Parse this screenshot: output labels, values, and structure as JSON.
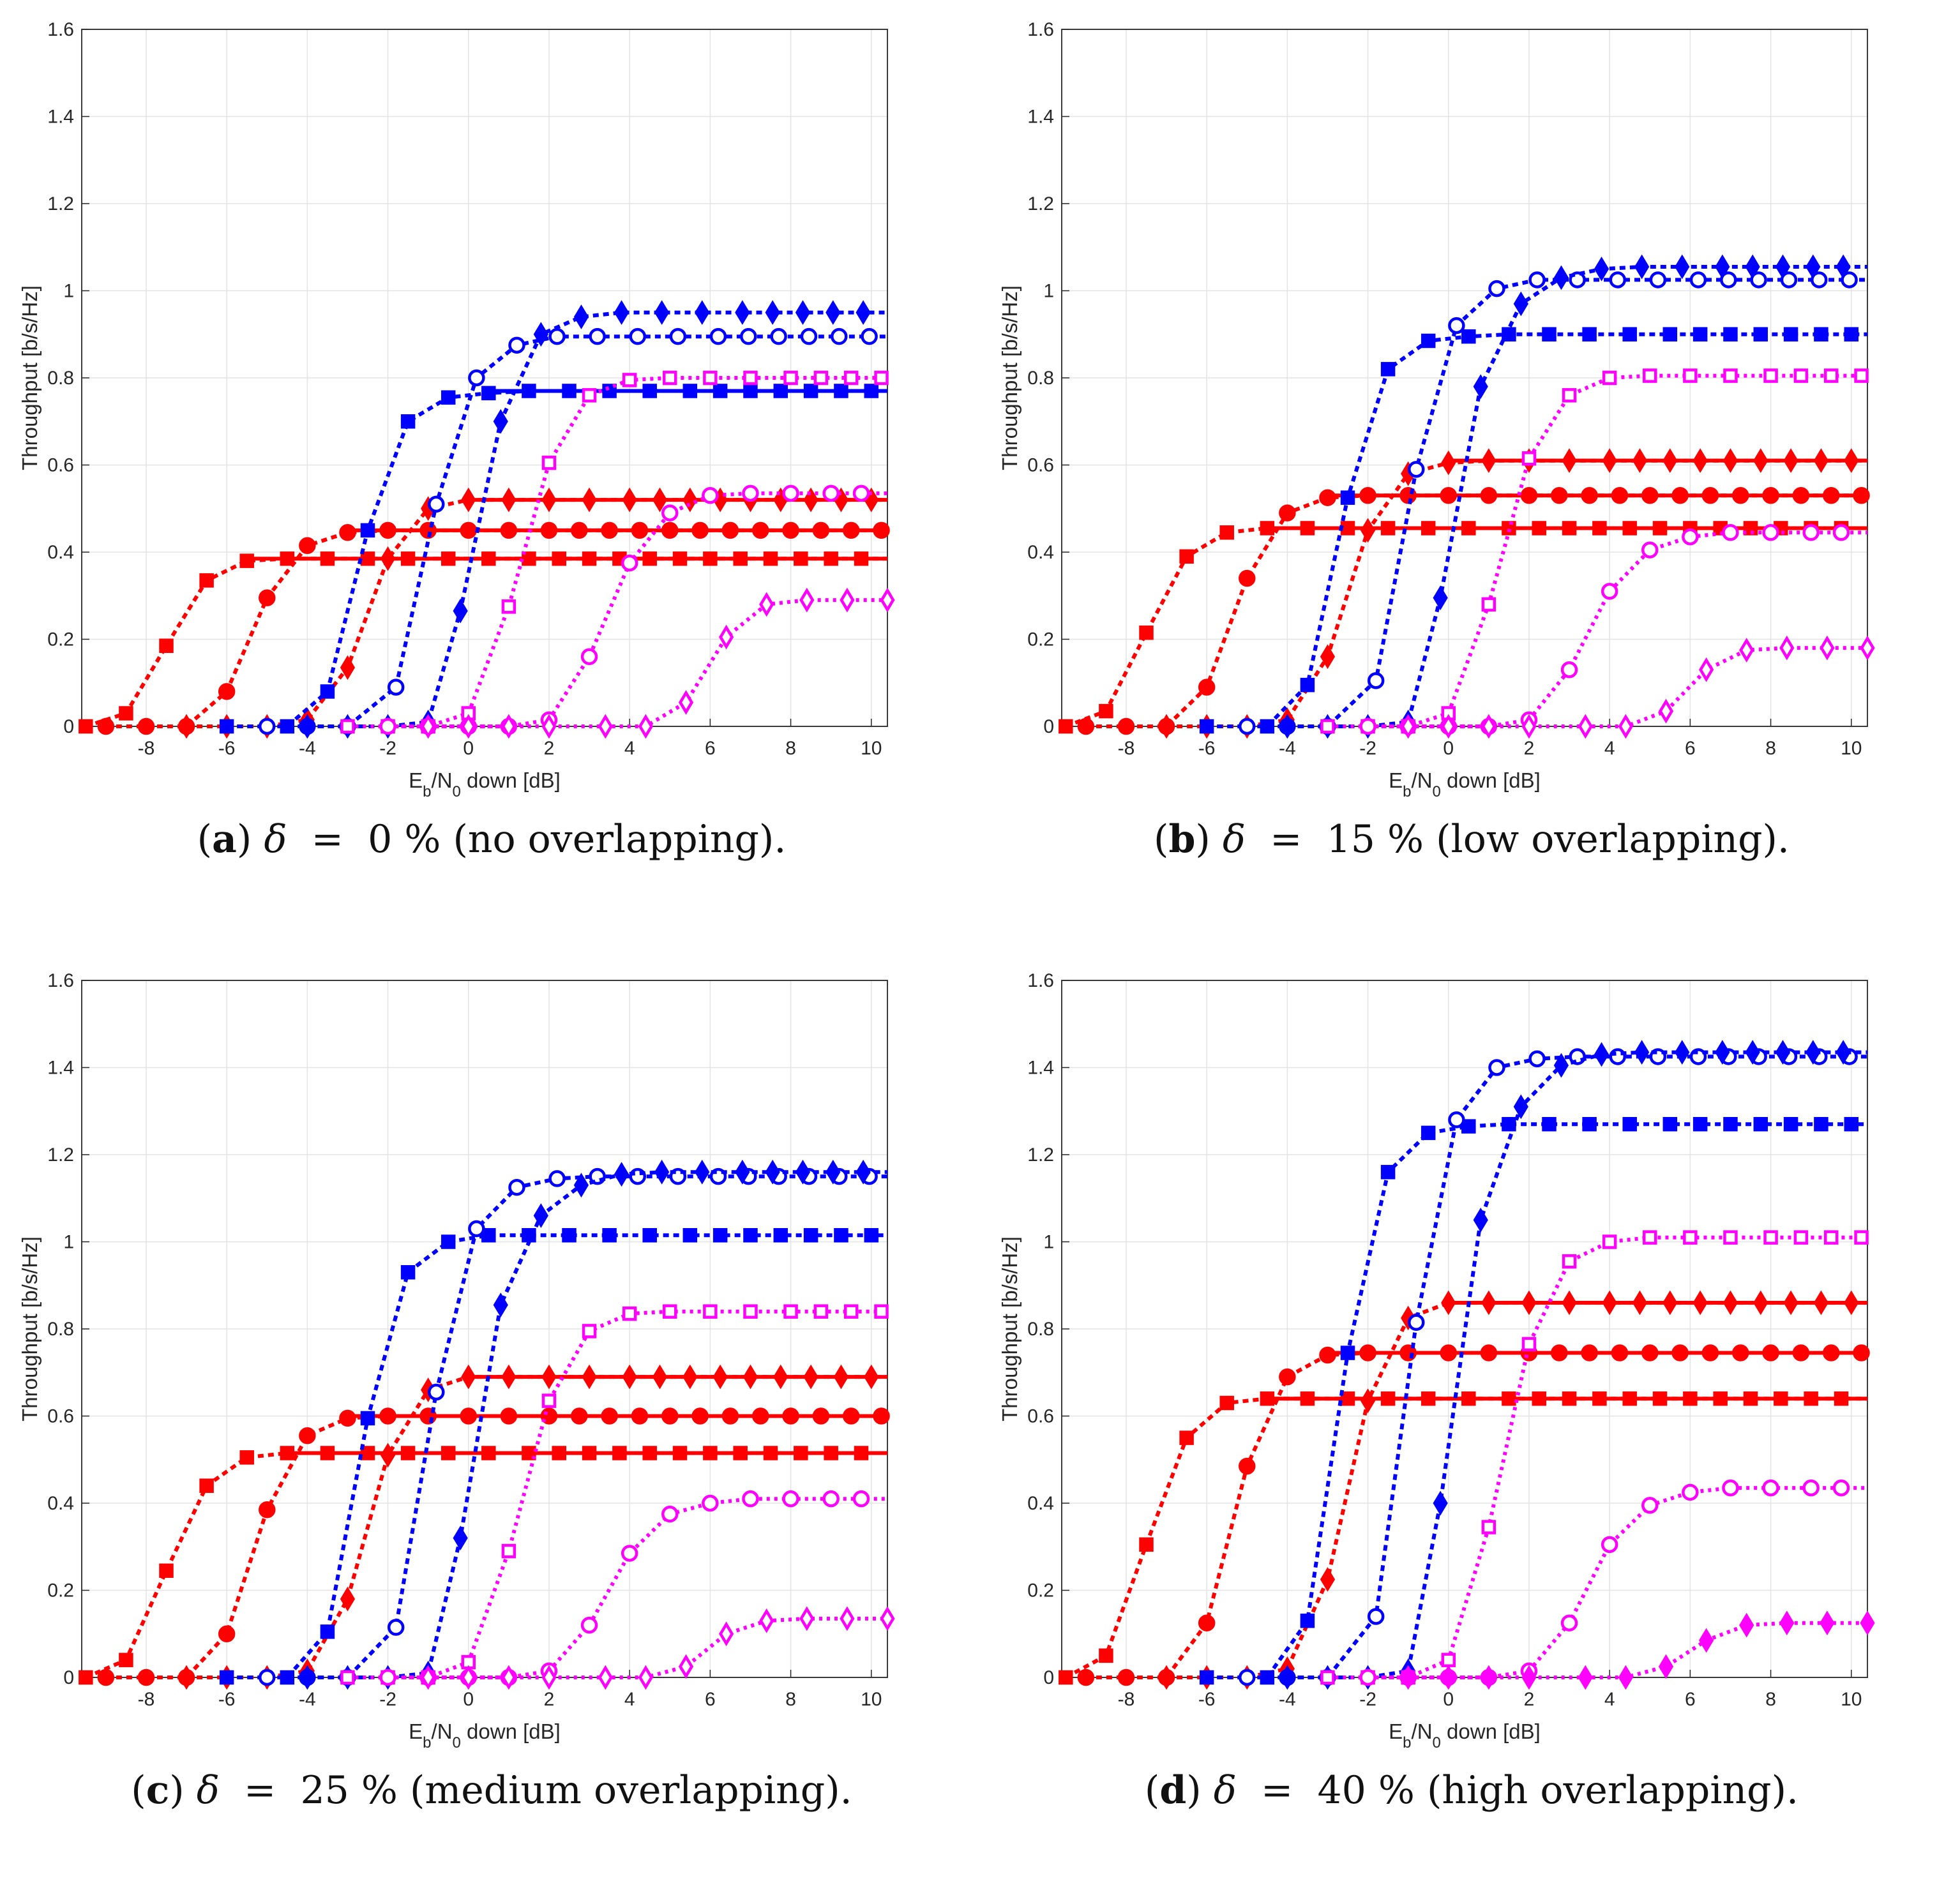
{
  "chart_data": [
    {
      "id": "a",
      "type": "line",
      "caption": {
        "letter": "a",
        "symbol": "δ",
        "value": "0",
        "text": "(no overlapping)."
      },
      "xlabel": "E_b/N_0 down [dB]",
      "ylabel": "Throughput [b/s/Hz]",
      "xlim": [
        -9.6,
        10.4
      ],
      "ylim": [
        0,
        1.6
      ],
      "xticks": [
        -8,
        -6,
        -4,
        -2,
        0,
        2,
        4,
        6,
        8,
        10
      ],
      "yticks": [
        0,
        0.2,
        0.4,
        0.6,
        0.8,
        1,
        1.2,
        1.4,
        1.6
      ],
      "grid": true,
      "series": [
        {
          "color": "#ff0000",
          "marker": "square",
          "filled": true,
          "values": [
            0,
            0.03,
            0.185,
            0.335,
            0.38,
            0.385,
            0.385,
            0.385,
            0.385,
            0.385,
            0.385,
            0.385
          ]
        },
        {
          "color": "#ff0000",
          "marker": "circle",
          "filled": true,
          "values": [
            0,
            0,
            0,
            0.08,
            0.295,
            0.415,
            0.445,
            0.45,
            0.45,
            0.45,
            0.45,
            0.45
          ]
        },
        {
          "color": "#ff0000",
          "marker": "diamond",
          "filled": true,
          "values": [
            0,
            0,
            0,
            0.015,
            0.135,
            0.385,
            0.5,
            0.52,
            0.52,
            0.52,
            0.52,
            0.52
          ]
        },
        {
          "color": "#0000ff",
          "marker": "square",
          "filled": true,
          "values": [
            0,
            0,
            0.08,
            0.45,
            0.7,
            0.755,
            0.765,
            0.77,
            0.77,
            0.77,
            0.77,
            0.77
          ]
        },
        {
          "color": "#0000ff",
          "marker": "circle",
          "filled": false,
          "values": [
            0,
            0,
            0,
            0.09,
            0.51,
            0.8,
            0.875,
            0.895,
            0.895,
            0.895,
            0.895,
            0.895
          ]
        },
        {
          "color": "#0000ff",
          "marker": "diamond",
          "filled": true,
          "values": [
            0,
            0,
            0,
            0.01,
            0.265,
            0.7,
            0.9,
            0.94,
            0.95,
            0.95,
            0.95,
            0.95
          ]
        },
        {
          "color": "#ff00ff",
          "marker": "square",
          "filled": false,
          "values": [
            0,
            0,
            0,
            0.03,
            0.275,
            0.605,
            0.76,
            0.795,
            0.8,
            0.8,
            0.8,
            0.8
          ]
        },
        {
          "color": "#ff00ff",
          "marker": "circle",
          "filled": false,
          "values": [
            0,
            0,
            0,
            0,
            0.015,
            0.16,
            0.375,
            0.49,
            0.53,
            0.535,
            0.535,
            0.535
          ]
        },
        {
          "color": "#ff00ff",
          "marker": "diamond",
          "filled": false,
          "values": [
            0,
            0,
            0,
            0,
            0,
            0,
            0.055,
            0.205,
            0.28,
            0.29,
            0.29,
            0.29
          ]
        }
      ]
    },
    {
      "id": "b",
      "type": "line",
      "caption": {
        "letter": "b",
        "symbol": "δ",
        "value": "15",
        "text": "(low overlapping)."
      },
      "xlabel": "E_b/N_0 down [dB]",
      "ylabel": "Throughput [b/s/Hz]",
      "xlim": [
        -9.6,
        10.4
      ],
      "ylim": [
        0,
        1.6
      ],
      "xticks": [
        -8,
        -6,
        -4,
        -2,
        0,
        2,
        4,
        6,
        8,
        10
      ],
      "yticks": [
        0,
        0.2,
        0.4,
        0.6,
        0.8,
        1,
        1.2,
        1.4,
        1.6
      ],
      "grid": true,
      "series": [
        {
          "color": "#ff0000",
          "marker": "square",
          "filled": true,
          "values": [
            0,
            0.035,
            0.215,
            0.39,
            0.445,
            0.455,
            0.455,
            0.455,
            0.455,
            0.455,
            0.455,
            0.455
          ]
        },
        {
          "color": "#ff0000",
          "marker": "circle",
          "filled": true,
          "values": [
            0,
            0,
            0,
            0.09,
            0.34,
            0.49,
            0.525,
            0.53,
            0.53,
            0.53,
            0.53,
            0.53
          ]
        },
        {
          "color": "#ff0000",
          "marker": "diamond",
          "filled": true,
          "values": [
            0,
            0,
            0,
            0.015,
            0.16,
            0.45,
            0.58,
            0.605,
            0.61,
            0.61,
            0.61,
            0.61
          ]
        },
        {
          "color": "#0000ff",
          "marker": "square",
          "filled": true,
          "values": [
            0,
            0,
            0.095,
            0.525,
            0.82,
            0.885,
            0.895,
            0.9,
            0.9,
            0.9,
            0.9,
            0.9
          ]
        },
        {
          "color": "#0000ff",
          "marker": "circle",
          "filled": false,
          "values": [
            0,
            0,
            0,
            0.105,
            0.59,
            0.92,
            1.005,
            1.025,
            1.025,
            1.025,
            1.025,
            1.025
          ]
        },
        {
          "color": "#0000ff",
          "marker": "diamond",
          "filled": true,
          "values": [
            0,
            0,
            0,
            0.01,
            0.295,
            0.78,
            0.97,
            1.03,
            1.05,
            1.055,
            1.055,
            1.055
          ]
        },
        {
          "color": "#ff00ff",
          "marker": "square",
          "filled": false,
          "values": [
            0,
            0,
            0,
            0.03,
            0.28,
            0.615,
            0.76,
            0.8,
            0.805,
            0.805,
            0.805,
            0.805
          ]
        },
        {
          "color": "#ff00ff",
          "marker": "circle",
          "filled": false,
          "values": [
            0,
            0,
            0,
            0,
            0.015,
            0.13,
            0.31,
            0.405,
            0.435,
            0.445,
            0.445,
            0.445
          ]
        },
        {
          "color": "#ff00ff",
          "marker": "diamond",
          "filled": false,
          "values": [
            0,
            0,
            0,
            0,
            0,
            0,
            0.035,
            0.13,
            0.175,
            0.18,
            0.18,
            0.18
          ]
        }
      ]
    },
    {
      "id": "c",
      "type": "line",
      "caption": {
        "letter": "c",
        "symbol": "δ",
        "value": "25",
        "text": "(medium overlapping)."
      },
      "xlabel": "E_b/N_0 down [dB]",
      "ylabel": "Throughput [b/s/Hz]",
      "xlim": [
        -9.6,
        10.4
      ],
      "ylim": [
        0,
        1.6
      ],
      "xticks": [
        -8,
        -6,
        -4,
        -2,
        0,
        2,
        4,
        6,
        8,
        10
      ],
      "yticks": [
        0,
        0.2,
        0.4,
        0.6,
        0.8,
        1,
        1.2,
        1.4,
        1.6
      ],
      "grid": true,
      "series": [
        {
          "color": "#ff0000",
          "marker": "square",
          "filled": true,
          "values": [
            0,
            0.04,
            0.245,
            0.44,
            0.505,
            0.515,
            0.515,
            0.515,
            0.515,
            0.515,
            0.515,
            0.515
          ]
        },
        {
          "color": "#ff0000",
          "marker": "circle",
          "filled": true,
          "values": [
            0,
            0,
            0,
            0.1,
            0.385,
            0.555,
            0.595,
            0.6,
            0.6,
            0.6,
            0.6,
            0.6
          ]
        },
        {
          "color": "#ff0000",
          "marker": "diamond",
          "filled": true,
          "values": [
            0,
            0,
            0,
            0.015,
            0.18,
            0.51,
            0.66,
            0.69,
            0.69,
            0.69,
            0.69,
            0.69
          ]
        },
        {
          "color": "#0000ff",
          "marker": "square",
          "filled": true,
          "values": [
            0,
            0,
            0.105,
            0.595,
            0.93,
            1.0,
            1.015,
            1.015,
            1.015,
            1.015,
            1.015,
            1.015
          ]
        },
        {
          "color": "#0000ff",
          "marker": "circle",
          "filled": false,
          "values": [
            0,
            0,
            0,
            0.115,
            0.655,
            1.03,
            1.125,
            1.145,
            1.15,
            1.15,
            1.15,
            1.15
          ]
        },
        {
          "color": "#0000ff",
          "marker": "diamond",
          "filled": true,
          "values": [
            0,
            0,
            0,
            0.01,
            0.32,
            0.855,
            1.06,
            1.13,
            1.155,
            1.16,
            1.16,
            1.16
          ]
        },
        {
          "color": "#ff00ff",
          "marker": "square",
          "filled": false,
          "values": [
            0,
            0,
            0,
            0.035,
            0.29,
            0.635,
            0.795,
            0.835,
            0.84,
            0.84,
            0.84,
            0.84
          ]
        },
        {
          "color": "#ff00ff",
          "marker": "circle",
          "filled": false,
          "values": [
            0,
            0,
            0,
            0,
            0.015,
            0.12,
            0.285,
            0.375,
            0.4,
            0.41,
            0.41,
            0.41
          ]
        },
        {
          "color": "#ff00ff",
          "marker": "diamond",
          "filled": false,
          "values": [
            0,
            0,
            0,
            0,
            0,
            0,
            0.025,
            0.1,
            0.13,
            0.135,
            0.135,
            0.135
          ]
        }
      ]
    },
    {
      "id": "d",
      "type": "line",
      "caption": {
        "letter": "d",
        "symbol": "δ",
        "value": "40",
        "text": "(high overlapping)."
      },
      "xlabel": "E_b/N_0 down [dB]",
      "ylabel": "Throughput [b/s/Hz]",
      "xlim": [
        -9.6,
        10.4
      ],
      "ylim": [
        0,
        1.6
      ],
      "xticks": [
        -8,
        -6,
        -4,
        -2,
        0,
        2,
        4,
        6,
        8,
        10
      ],
      "yticks": [
        0,
        0.2,
        0.4,
        0.6,
        0.8,
        1,
        1.2,
        1.4,
        1.6
      ],
      "grid": true,
      "series": [
        {
          "color": "#ff0000",
          "marker": "square",
          "filled": true,
          "values": [
            0,
            0.05,
            0.305,
            0.55,
            0.63,
            0.64,
            0.64,
            0.64,
            0.64,
            0.64,
            0.64,
            0.64
          ]
        },
        {
          "color": "#ff0000",
          "marker": "circle",
          "filled": true,
          "values": [
            0,
            0,
            0,
            0.125,
            0.485,
            0.69,
            0.74,
            0.745,
            0.745,
            0.745,
            0.745,
            0.745
          ]
        },
        {
          "color": "#ff0000",
          "marker": "diamond",
          "filled": true,
          "values": [
            0,
            0,
            0,
            0.02,
            0.225,
            0.635,
            0.825,
            0.86,
            0.86,
            0.86,
            0.86,
            0.86
          ]
        },
        {
          "color": "#0000ff",
          "marker": "square",
          "filled": true,
          "values": [
            0,
            0,
            0.13,
            0.745,
            1.16,
            1.25,
            1.265,
            1.27,
            1.27,
            1.27,
            1.27,
            1.27
          ]
        },
        {
          "color": "#0000ff",
          "marker": "circle",
          "filled": false,
          "values": [
            0,
            0,
            0,
            0.14,
            0.815,
            1.28,
            1.4,
            1.42,
            1.425,
            1.425,
            1.425,
            1.425
          ]
        },
        {
          "color": "#0000ff",
          "marker": "diamond",
          "filled": true,
          "values": [
            0,
            0,
            0,
            0.015,
            0.4,
            1.05,
            1.31,
            1.405,
            1.43,
            1.435,
            1.435,
            1.435
          ]
        },
        {
          "color": "#ff00ff",
          "marker": "square",
          "filled": false,
          "values": [
            0,
            0,
            0,
            0.04,
            0.345,
            0.765,
            0.955,
            1.0,
            1.01,
            1.01,
            1.01,
            1.01
          ]
        },
        {
          "color": "#ff00ff",
          "marker": "circle",
          "filled": false,
          "values": [
            0,
            0,
            0,
            0,
            0.015,
            0.125,
            0.305,
            0.395,
            0.425,
            0.435,
            0.435,
            0.435
          ]
        },
        {
          "color": "#ff00ff",
          "marker": "diamond",
          "filled": true,
          "values": [
            0,
            0,
            0,
            0,
            0,
            0,
            0.025,
            0.085,
            0.12,
            0.125,
            0.125,
            0.125
          ]
        }
      ]
    }
  ],
  "series_x_grid": [
    [
      -9.5,
      -8.5,
      -7.5,
      -6.5,
      -5.5,
      -4.5,
      -3.5,
      -2.5,
      -1.5,
      -0.5,
      0.5,
      1.5
    ],
    [
      -9.0,
      -8.0,
      -7.0,
      -6.0,
      -5.0,
      -4.0,
      -3.0,
      -2.0,
      -1.0,
      0.0,
      1.0,
      2.0
    ],
    [
      -7.0,
      -6.0,
      -5.0,
      -4.0,
      -3.0,
      -2.0,
      -1.0,
      0.0,
      1.0,
      2.0,
      3.0,
      4.0
    ],
    [
      -6.0,
      -4.5,
      -3.5,
      -2.5,
      -1.5,
      -0.5,
      0.5,
      1.5,
      2.5,
      3.5,
      4.5,
      5.5
    ],
    [
      -5.0,
      -4.0,
      -3.0,
      -1.8,
      -0.8,
      0.2,
      1.2,
      2.2,
      3.2,
      4.2,
      5.2,
      6.2
    ],
    [
      -4.0,
      -3.0,
      -2.0,
      -1.0,
      -0.2,
      0.8,
      1.8,
      2.8,
      3.8,
      4.8,
      5.8,
      6.8
    ],
    [
      -3.0,
      -2.0,
      -1.0,
      0.0,
      1.0,
      2.0,
      3.0,
      4.0,
      5.0,
      6.0,
      7.0,
      8.0
    ],
    [
      -2.0,
      -1.0,
      0.0,
      1.0,
      2.0,
      3.0,
      4.0,
      5.0,
      6.0,
      7.0,
      8.0,
      9.0
    ],
    [
      -1.0,
      0.0,
      1.0,
      2.0,
      3.4,
      4.4,
      5.4,
      6.4,
      7.4,
      8.4,
      9.4,
      10.4
    ]
  ]
}
